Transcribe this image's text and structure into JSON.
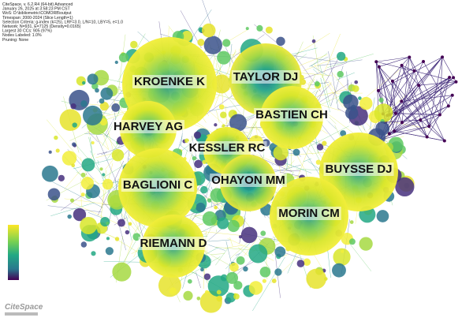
{
  "header": {
    "lines": [
      "CiteSpace, v. 6.2.R4 (64-bit) Advanced",
      "January 26, 2025 at 3:58:23 PM CST",
      "WoS: D:\\bibliometric\\COMORB\\output",
      "Timespan: 2000-2024 (Slice Length=1)",
      "Selection Criteria: g-index (k=25), LRF=3.0, L/N=10, LBY=5, e=1.0",
      "Network: N=931, E=7125 (Density=0.0165)",
      "Largest 30 CCs: 905 (97%)",
      "Nodes Labeled: 1.0%",
      "Pruning: None"
    ]
  },
  "nodes": [
    {
      "label": "KROENKE K"
    },
    {
      "label": "TAYLOR DJ"
    },
    {
      "label": "HARVEY AG"
    },
    {
      "label": "BASTIEN CH"
    },
    {
      "label": "KESSLER RC"
    },
    {
      "label": "BUYSSE DJ"
    },
    {
      "label": "BAGLIONI C"
    },
    {
      "label": "OHAYON MM"
    },
    {
      "label": "MORIN CM"
    },
    {
      "label": "RIEMANN D"
    }
  ],
  "logo": "CiteSpace"
}
